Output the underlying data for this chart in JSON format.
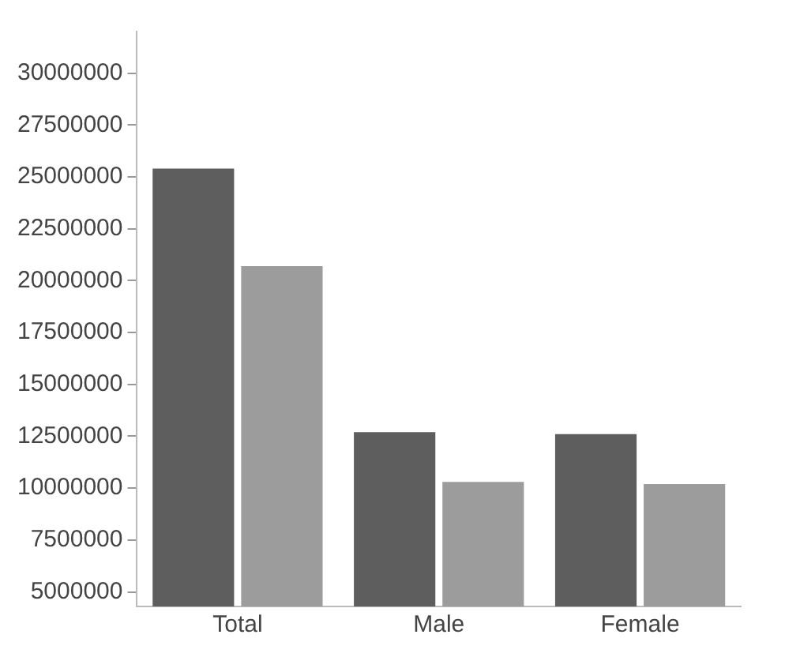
{
  "chart_data": {
    "type": "bar",
    "categories": [
      "Total",
      "Male",
      "Female"
    ],
    "series": [
      {
        "color": "#5e5e5e",
        "values": [
          25400000,
          12700000,
          12600000
        ]
      },
      {
        "color": "#9c9c9c",
        "values": [
          20700000,
          10300000,
          10200000
        ]
      }
    ],
    "ylim": [
      4300000,
      32000000
    ],
    "yticks": [
      5000000,
      7500000,
      10000000,
      12500000,
      15000000,
      17500000,
      20000000,
      22500000,
      25000000,
      27500000,
      30000000
    ],
    "grid": false,
    "legend": false
  }
}
